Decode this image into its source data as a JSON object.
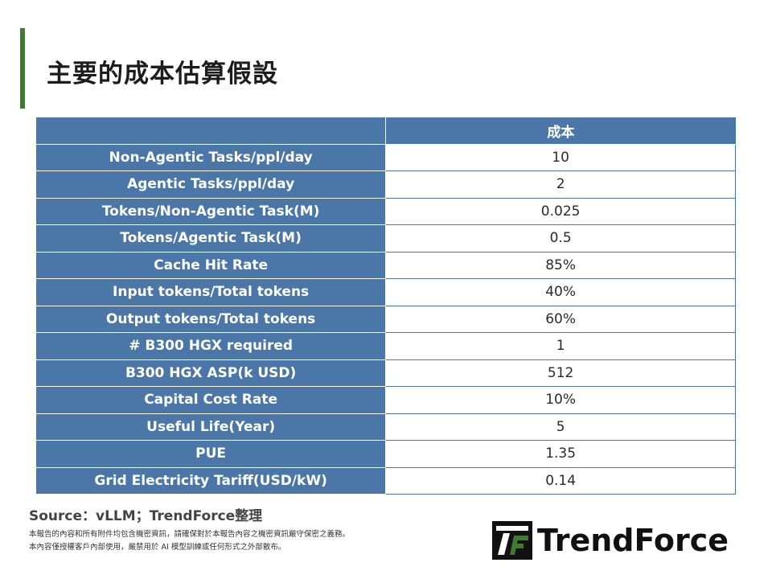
{
  "title": "主要的成本估算假設",
  "table": {
    "header": "成本",
    "rows": [
      {
        "label": "Non-Agentic Tasks/ppl/day",
        "value": "10"
      },
      {
        "label": "Agentic Tasks/ppl/day",
        "value": "2"
      },
      {
        "label": "Tokens/Non-Agentic Task(M)",
        "value": "0.025"
      },
      {
        "label": "Tokens/Agentic Task(M)",
        "value": "0.5"
      },
      {
        "label": "Cache Hit Rate",
        "value": "85%"
      },
      {
        "label": "Input tokens/Total tokens",
        "value": "40%"
      },
      {
        "label": "Output tokens/Total tokens",
        "value": "60%"
      },
      {
        "label": "# B300 HGX required",
        "value": "1"
      },
      {
        "label": "B300 HGX ASP(k USD)",
        "value": "512"
      },
      {
        "label": "Capital Cost Rate",
        "value": "10%"
      },
      {
        "label": "Useful Life(Year)",
        "value": "5"
      },
      {
        "label": "PUE",
        "value": "1.35"
      },
      {
        "label": "Grid Electricity Tariff(USD/kW)",
        "value": "0.14"
      }
    ]
  },
  "source": "Source：vLLM；TrendForce整理",
  "disclaimer": {
    "line1": "本報告的內容和所有附件均包含機密資訊，請確保對於本報告內容之機密資訊嚴守保密之義務。",
    "line2": "本內容僅授權客戶內部使用，嚴禁用於 AI 模型訓練或任何形式之外部散布。"
  },
  "brand": {
    "name": "TrendForce",
    "logo_icon": "trendforce-logo-icon"
  },
  "watermark": {
    "text": "TrendForce",
    "logo_icon": "trendforce-logo-icon"
  },
  "colors": {
    "accent": "#3f7a30",
    "table_header": "#4a76a8",
    "brand_green": "#3f7a30"
  }
}
